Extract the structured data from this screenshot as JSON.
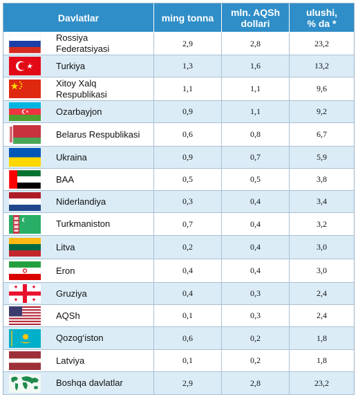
{
  "header": {
    "col_country": "Davlatlar",
    "col_tonnes": "ming tonna",
    "col_usd": "mln. AQSh\ndollari",
    "col_share": "ulushi,\n% da *"
  },
  "rows": [
    {
      "name": "Rossiya\nFederatsiyasi",
      "tonnes": "2,9",
      "usd": "2,8",
      "share": "23,2",
      "flag": "russia-flag-icon"
    },
    {
      "name": "Turkiya",
      "tonnes": "1,3",
      "usd": "1,6",
      "share": "13,2",
      "flag": "turkey-flag-icon"
    },
    {
      "name": "Xitoy Xalq\nRespublikasi",
      "tonnes": "1,1",
      "usd": "1,1",
      "share": "9,6",
      "flag": "china-flag-icon"
    },
    {
      "name": "Ozarbayjon",
      "tonnes": "0,9",
      "usd": "1,1",
      "share": "9,2",
      "flag": "azerbaijan-flag-icon"
    },
    {
      "name": "Belarus Respublikasi",
      "tonnes": "0,6",
      "usd": "0,8",
      "share": "6,7",
      "flag": "belarus-flag-icon"
    },
    {
      "name": "Ukraina",
      "tonnes": "0,9",
      "usd": "0,7",
      "share": "5,9",
      "flag": "ukraine-flag-icon"
    },
    {
      "name": "BAA",
      "tonnes": "0,5",
      "usd": "0,5",
      "share": "3,8",
      "flag": "uae-flag-icon"
    },
    {
      "name": "Niderlandiya",
      "tonnes": "0,3",
      "usd": "0,4",
      "share": "3,4",
      "flag": "netherlands-flag-icon"
    },
    {
      "name": "Turkmaniston",
      "tonnes": "0,7",
      "usd": "0,4",
      "share": "3,2",
      "flag": "turkmenistan-flag-icon"
    },
    {
      "name": "Litva",
      "tonnes": "0,2",
      "usd": "0,4",
      "share": "3,0",
      "flag": "lithuania-flag-icon"
    },
    {
      "name": "Eron",
      "tonnes": "0,4",
      "usd": "0,4",
      "share": "3,0",
      "flag": "iran-flag-icon"
    },
    {
      "name": "Gruziya",
      "tonnes": "0,4",
      "usd": "0,3",
      "share": "2,4",
      "flag": "georgia-flag-icon"
    },
    {
      "name": "AQSh",
      "tonnes": "0,1",
      "usd": "0,3",
      "share": "2,4",
      "flag": "usa-flag-icon"
    },
    {
      "name": "Qozog‘iston",
      "tonnes": "0,6",
      "usd": "0,2",
      "share": "1,8",
      "flag": "kazakhstan-flag-icon"
    },
    {
      "name": "Latviya",
      "tonnes": "0,1",
      "usd": "0,2",
      "share": "1,8",
      "flag": "latvia-flag-icon"
    },
    {
      "name": "Boshqa davlatlar",
      "tonnes": "2,9",
      "usd": "2,8",
      "share": "23,2",
      "flag": "world-map-icon"
    }
  ],
  "colors": {
    "header_bg": "#2f8ec8",
    "alt_row_bg": "#dbecf6",
    "border": "#a9c0d3"
  }
}
